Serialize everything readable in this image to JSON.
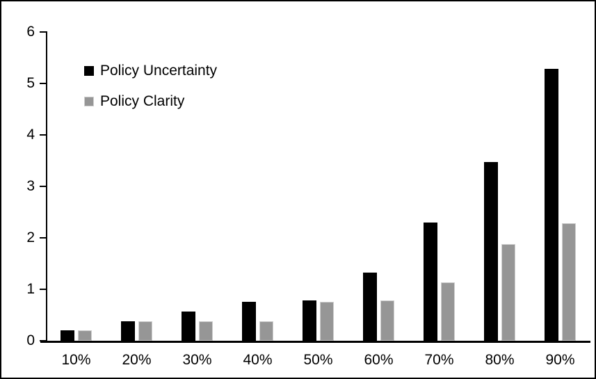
{
  "chart_data": {
    "type": "bar",
    "title": "",
    "xlabel": "",
    "ylabel": "",
    "categories": [
      "10%",
      "20%",
      "30%",
      "40%",
      "50%",
      "60%",
      "70%",
      "80%",
      "90%"
    ],
    "series": [
      {
        "name": "Policy Uncertainty",
        "color": "#000000",
        "values": [
          0.2,
          0.38,
          0.57,
          0.76,
          0.78,
          1.32,
          2.3,
          3.47,
          5.28
        ]
      },
      {
        "name": "Policy Clarity",
        "color": "#969696",
        "border_color": "#cfcfcf",
        "values": [
          0.2,
          0.38,
          0.38,
          0.38,
          0.76,
          0.78,
          1.14,
          1.88,
          2.28
        ]
      }
    ],
    "ylim": [
      0,
      6
    ],
    "yticks": [
      0,
      1,
      2,
      3,
      4,
      5,
      6
    ],
    "grid": false,
    "legend_position": "top-left-inside",
    "axis_color": "#000000",
    "background_color": "#ffffff",
    "frame_border_color": "#000000"
  }
}
